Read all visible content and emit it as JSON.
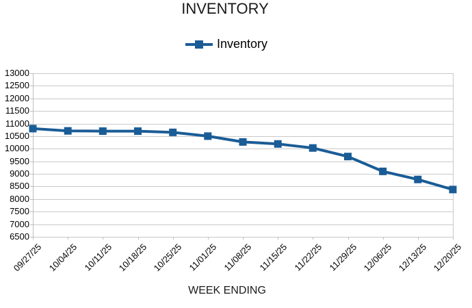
{
  "chart": {
    "title": "INVENTORY",
    "legend": {
      "label": "Inventory"
    },
    "x_axis_title": "WEEK ENDING",
    "colors": {
      "series": "#1a5c96",
      "grid": "#c9c9c9",
      "axis": "#bdbdbd",
      "text": "#000000"
    }
  },
  "chart_data": {
    "type": "line",
    "title": "INVENTORY",
    "xlabel": "WEEK ENDING",
    "ylabel": "",
    "categories": [
      "09/27/25",
      "10/04/25",
      "10/11/25",
      "10/18/25",
      "10/25/25",
      "11/01/25",
      "11/08/25",
      "11/15/25",
      "11/22/25",
      "11/29/25",
      "12/06/25",
      "12/13/25",
      "12/20/25"
    ],
    "series": [
      {
        "name": "Inventory",
        "values": [
          10800,
          10710,
          10700,
          10700,
          10650,
          10500,
          10270,
          10190,
          10030,
          9690,
          9100,
          8780,
          8380
        ]
      }
    ],
    "ylim": [
      6500,
      13000
    ],
    "ytick_step": 500,
    "ytick_labels": [
      "13000",
      "12500",
      "12000",
      "11500",
      "11000",
      "10500",
      "10000",
      "9500",
      "9000",
      "8500",
      "8000",
      "7500",
      "7000",
      "6500"
    ],
    "grid": true,
    "legend_position": "top",
    "marker": "square"
  }
}
